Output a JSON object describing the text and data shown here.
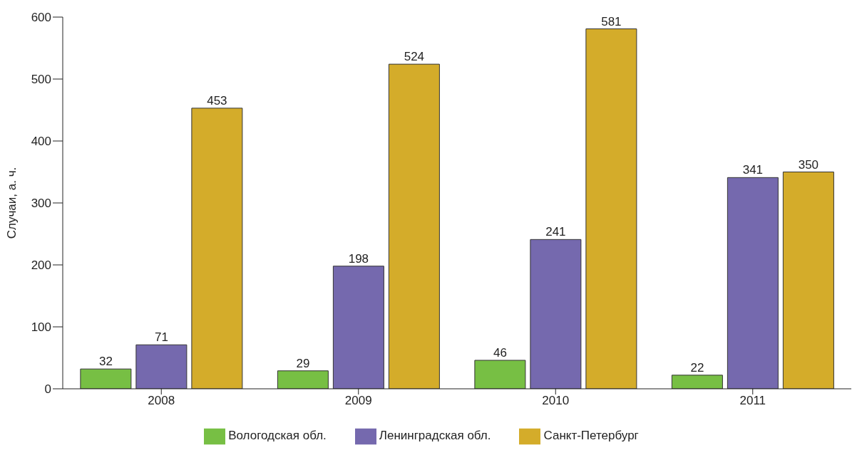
{
  "chart_data": {
    "type": "bar",
    "ylabel": "Случаи, а. ч.",
    "categories": [
      "2008",
      "2009",
      "2010",
      "2011"
    ],
    "series": [
      {
        "name": "Вологодская обл.",
        "color": "#77bf44",
        "values": [
          32,
          29,
          46,
          22
        ]
      },
      {
        "name": "Ленинградская обл.",
        "color": "#7569ae",
        "values": [
          71,
          198,
          241,
          341
        ]
      },
      {
        "name": "Санкт-Петербург",
        "color": "#d4ac2a",
        "values": [
          453,
          524,
          581,
          350
        ]
      }
    ],
    "ylim": [
      0,
      600
    ],
    "yticks": [
      0,
      100,
      200,
      300,
      400,
      500,
      600
    ],
    "grid": false,
    "legend": "bottom",
    "data_labels": true
  }
}
